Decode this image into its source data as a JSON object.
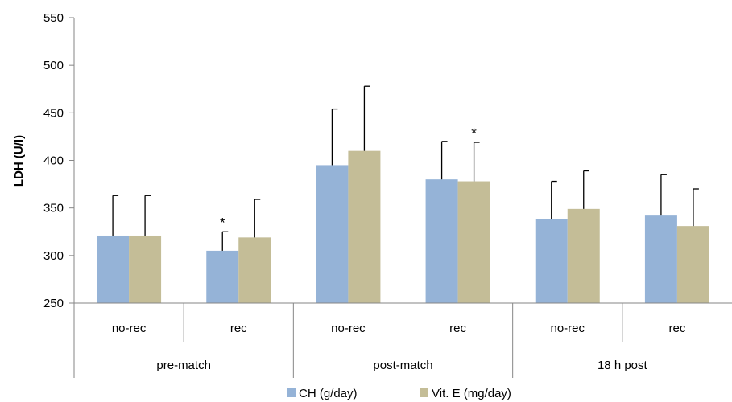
{
  "chart_data": {
    "type": "bar",
    "ylabel": "LDH (U/l)",
    "ylim": [
      250,
      550
    ],
    "yticks": [
      250,
      300,
      350,
      400,
      450,
      500,
      550
    ],
    "ytick_labels": [
      "250",
      "300",
      "350",
      "400",
      "450",
      "500",
      "550"
    ],
    "groups": [
      "pre-match",
      "post-match",
      "18 h post"
    ],
    "subcategories": [
      {
        "label": "no-rec",
        "group": "pre-match"
      },
      {
        "label": "rec",
        "group": "pre-match"
      },
      {
        "label": "no-rec",
        "group": "post-match"
      },
      {
        "label": "rec",
        "group": "post-match"
      },
      {
        "label": "no-rec",
        "group": "18 h post"
      },
      {
        "label": "rec",
        "group": "18 h post"
      }
    ],
    "series": [
      {
        "name": "CH (g/day)",
        "color": "#95b3d7",
        "values": [
          321,
          305,
          395,
          380,
          338,
          342
        ],
        "errors": [
          42,
          20,
          59,
          40,
          40,
          43
        ]
      },
      {
        "name": "Vit. E (mg/day)",
        "color": "#c4bd97",
        "values": [
          321,
          319,
          410,
          378,
          349,
          331
        ],
        "errors": [
          42,
          40,
          68,
          41,
          40,
          39
        ]
      }
    ],
    "significance_markers": [
      {
        "label": "*",
        "series": 0,
        "index": 1
      },
      {
        "label": "*",
        "series": 1,
        "index": 3
      }
    ],
    "legend_position": "bottom-center",
    "grid": false
  }
}
